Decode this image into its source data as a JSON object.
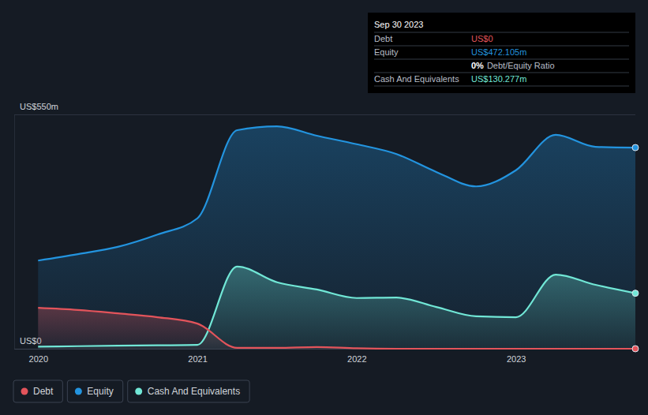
{
  "chart_data": {
    "type": "line",
    "x": [
      2020.0,
      2020.25,
      2020.5,
      2020.75,
      2021.0,
      2021.25,
      2021.5,
      2021.75,
      2022.0,
      2022.25,
      2022.5,
      2022.75,
      2023.0,
      2023.25,
      2023.5,
      2023.75
    ],
    "xlim": [
      2019.85,
      2023.75
    ],
    "xticks": [
      2020,
      2021,
      2022,
      2023
    ],
    "ylim": [
      0,
      550
    ],
    "yticks": [
      {
        "value": 0,
        "label": "US$0"
      },
      {
        "value": 550,
        "label": "US$550m"
      }
    ],
    "grid": true,
    "legend": "bottom-left",
    "series": [
      {
        "name": "Debt",
        "color": "#e3545b",
        "values": [
          96,
          91,
          83,
          74,
          59,
          2,
          2,
          4,
          1,
          0,
          0,
          0,
          0,
          0,
          0,
          0
        ]
      },
      {
        "name": "Equity",
        "color": "#2394df",
        "values": [
          207,
          222,
          239,
          268,
          306,
          513,
          522,
          500,
          480,
          457,
          415,
          381,
          419,
          502,
          474,
          472.105
        ]
      },
      {
        "name": "Cash And Equivalents",
        "color": "#71e7d6",
        "values": [
          5,
          6,
          7,
          8,
          9,
          193,
          156,
          139,
          119,
          120,
          98,
          76,
          74,
          174,
          150,
          130.277
        ]
      }
    ],
    "annotations": {
      "title": "Sep 30 2023",
      "rows": [
        {
          "label": "Debt",
          "text": "US$0"
        },
        {
          "label": "Equity",
          "text": "US$472.105m"
        },
        {
          "text": "0%",
          "suffix": "Debt/Equity Ratio"
        },
        {
          "label": "Cash And Equivalents",
          "text": "US$130.277m"
        }
      ]
    }
  }
}
